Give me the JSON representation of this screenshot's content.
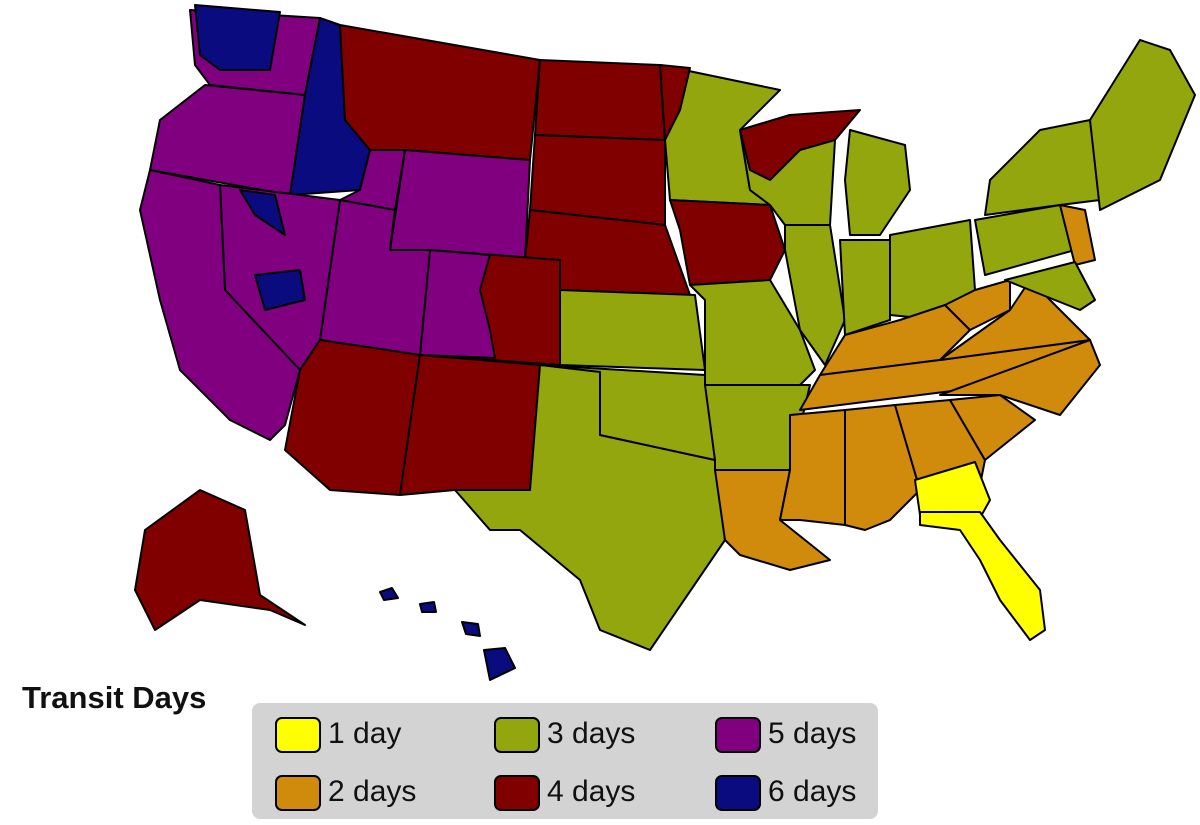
{
  "title": "Transit Days",
  "legend": [
    {
      "label": "1 day",
      "color": "#ffff00"
    },
    {
      "label": "2 days",
      "color": "#d08a0c"
    },
    {
      "label": "3 days",
      "color": "#94a60e"
    },
    {
      "label": "4 days",
      "color": "#800000"
    },
    {
      "label": "5 days",
      "color": "#800080"
    },
    {
      "label": "6 days",
      "color": "#0b0b80"
    }
  ]
}
